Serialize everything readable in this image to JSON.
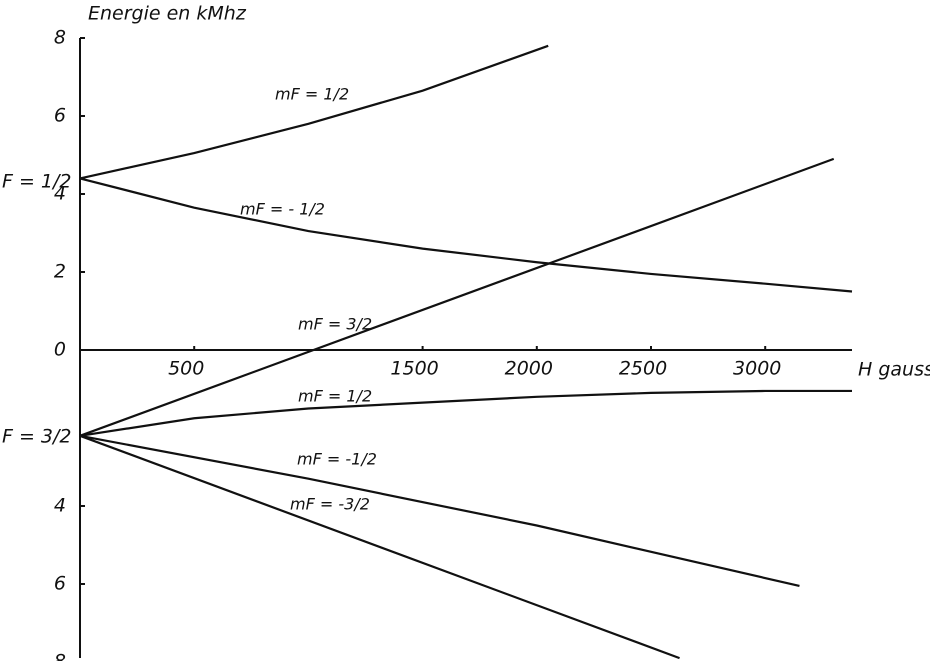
{
  "chart_data": {
    "type": "line",
    "ylabel": "Energie en kMhz",
    "xlabel": "H gauss",
    "level_labels": [
      "F = 1/2",
      "F = 3/2"
    ],
    "xlim": [
      0,
      3380
    ],
    "ylim": [
      -8,
      8
    ],
    "xticks": [
      500,
      1500,
      2000,
      2500,
      3000
    ],
    "yticks": [
      8,
      6,
      4,
      2,
      0,
      {
        "value": -4,
        "label": "4"
      },
      {
        "value": -6,
        "label": "6"
      },
      {
        "value": -8,
        "label": "8"
      }
    ],
    "color": "#111111",
    "series": [
      {
        "name": "mF = 1/2",
        "x": [
          0,
          500,
          1000,
          1500,
          2050
        ],
        "values": [
          4.4,
          5.05,
          5.8,
          6.65,
          7.8
        ]
      },
      {
        "name": "mF = - 1/2",
        "x": [
          0,
          500,
          1000,
          1500,
          2000,
          2500,
          3000,
          3380
        ],
        "values": [
          4.4,
          3.65,
          3.05,
          2.6,
          2.25,
          1.95,
          1.7,
          1.5
        ]
      },
      {
        "name": "mF = 3/2",
        "x": [
          0,
          3300
        ],
        "values": [
          -2.2,
          4.9
        ]
      },
      {
        "name": "mF = 1/2",
        "x": [
          0,
          500,
          1000,
          1500,
          2000,
          2500,
          3000,
          3380
        ],
        "values": [
          -2.2,
          -1.75,
          -1.5,
          -1.35,
          -1.2,
          -1.1,
          -1.05,
          -1.05
        ]
      },
      {
        "name": "mF = -1/2",
        "x": [
          0,
          1000,
          2000,
          3150
        ],
        "values": [
          -2.2,
          -3.3,
          -4.5,
          -6.05
        ]
      },
      {
        "name": "mF = -3/2",
        "x": [
          0,
          2625
        ],
        "values": [
          -2.2,
          -7.9
        ]
      }
    ]
  }
}
